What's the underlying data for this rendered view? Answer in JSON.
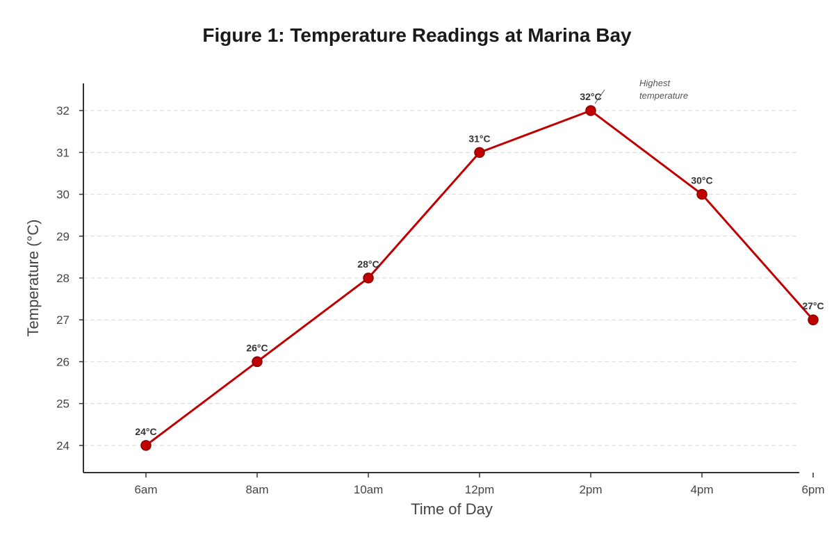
{
  "chart_data": {
    "type": "line",
    "title": "Figure 1: Temperature Readings at Marina Bay",
    "xlabel": "Time of Day",
    "ylabel": "Temperature (°C)",
    "categories": [
      "6am",
      "8am",
      "10am",
      "12pm",
      "2pm",
      "4pm",
      "6pm"
    ],
    "series": [
      {
        "values": [
          24,
          26,
          28,
          31,
          32,
          30,
          27
        ],
        "labels": [
          "24°C",
          "26°C",
          "28°C",
          "31°C",
          "32°C",
          "30°C",
          "27°C"
        ],
        "color": "#c00000"
      }
    ],
    "ylim": [
      23.35,
      32.65
    ],
    "yticks": [
      "24",
      "25",
      "26",
      "27",
      "28",
      "29",
      "30",
      "31",
      "32"
    ],
    "grid": "horizontal",
    "annotation": {
      "text_lines": [
        "Highest",
        "temperature"
      ],
      "category": "2pm",
      "value": 32
    }
  }
}
